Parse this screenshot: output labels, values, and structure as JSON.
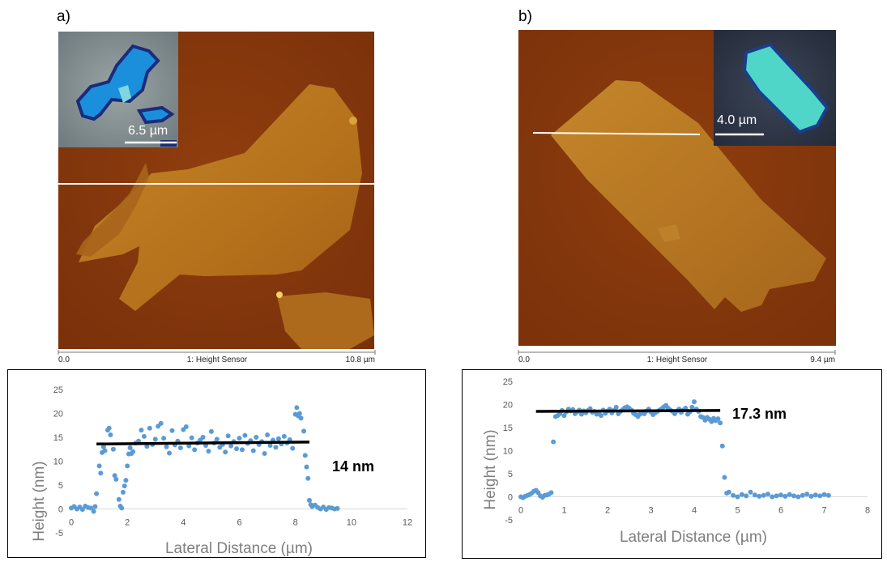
{
  "figure": {
    "panel_a": {
      "label": "a)",
      "inset_scale": "6.5 µm",
      "scan_axis": {
        "start": "0.0",
        "center": "1: Height Sensor",
        "end": "10.8 µm"
      },
      "annotation": "14 nm"
    },
    "panel_b": {
      "label": "b)",
      "inset_scale": "4.0 µm",
      "scan_axis": {
        "start": "0.0",
        "center": "1: Height Sensor",
        "end": "9.4 µm"
      },
      "annotation": "17.3 nm"
    }
  },
  "chart_data": [
    {
      "type": "scatter",
      "xlabel": "Lateral Distance (µm)",
      "ylabel": "Height  (nm)",
      "xlim": [
        0,
        12
      ],
      "ylim": [
        -5,
        25
      ],
      "xticks": [
        "0",
        "2",
        "4",
        "6",
        "8",
        "10",
        "12"
      ],
      "yticks": [
        "-5",
        "0",
        "5",
        "10",
        "15",
        "20",
        "25"
      ],
      "color": "#5b9bd5",
      "fit_line": {
        "x": [
          0.9,
          8.5
        ],
        "y": [
          13.6,
          14.0
        ]
      },
      "annotation": "14 nm",
      "x": [
        0.0,
        0.1,
        0.2,
        0.3,
        0.4,
        0.5,
        0.6,
        0.7,
        0.8,
        0.85,
        0.9,
        1.0,
        1.05,
        1.1,
        1.15,
        1.2,
        1.3,
        1.35,
        1.4,
        1.5,
        1.55,
        1.6,
        1.7,
        1.75,
        1.8,
        1.85,
        1.9,
        1.95,
        2.0,
        2.05,
        2.1,
        2.15,
        2.2,
        2.3,
        2.4,
        2.5,
        2.6,
        2.7,
        2.8,
        2.9,
        3.0,
        3.1,
        3.2,
        3.3,
        3.4,
        3.5,
        3.6,
        3.7,
        3.8,
        3.9,
        4.0,
        4.1,
        4.2,
        4.3,
        4.4,
        4.5,
        4.6,
        4.7,
        4.8,
        4.9,
        5.0,
        5.1,
        5.2,
        5.3,
        5.4,
        5.5,
        5.6,
        5.7,
        5.8,
        5.9,
        6.0,
        6.1,
        6.2,
        6.3,
        6.4,
        6.5,
        6.6,
        6.7,
        6.8,
        6.9,
        7.0,
        7.1,
        7.2,
        7.3,
        7.4,
        7.5,
        7.6,
        7.7,
        7.8,
        7.9,
        8.0,
        8.05,
        8.1,
        8.15,
        8.2,
        8.3,
        8.35,
        8.4,
        8.45,
        8.5,
        8.55,
        8.6,
        8.7,
        8.8,
        8.9,
        9.0,
        9.1,
        9.2,
        9.3,
        9.4,
        9.5
      ],
      "y": [
        0.2,
        0.5,
        0.0,
        0.4,
        -0.1,
        0.6,
        0.3,
        0.2,
        -0.5,
        0.5,
        3.2,
        9.0,
        7.5,
        11.8,
        13.0,
        12.2,
        16.5,
        16.9,
        15.5,
        12.5,
        7.0,
        6.2,
        2.0,
        0.6,
        0.2,
        3.5,
        4.8,
        6.0,
        9.0,
        11.5,
        12.8,
        11.6,
        12.0,
        13.8,
        14.2,
        16.5,
        15.2,
        13.1,
        16.9,
        13.5,
        14.6,
        17.3,
        17.9,
        14.8,
        13.0,
        11.7,
        16.4,
        13.4,
        14.2,
        12.8,
        16.6,
        17.2,
        13.2,
        14.9,
        12.4,
        13.8,
        14.4,
        15.0,
        13.3,
        12.1,
        16.2,
        13.8,
        14.6,
        12.9,
        13.5,
        11.9,
        15.3,
        13.2,
        14.1,
        12.6,
        14.8,
        12.4,
        15.4,
        13.7,
        14.3,
        12.2,
        15.0,
        13.5,
        14.1,
        11.6,
        15.5,
        13.3,
        14.4,
        12.9,
        14.7,
        13.6,
        15.2,
        13.8,
        14.5,
        12.7,
        19.8,
        21.2,
        19.5,
        20.0,
        19.0,
        16.3,
        11.2,
        8.8,
        6.4,
        1.8,
        0.9,
        0.5,
        0.8,
        0.3,
        0.0,
        0.4,
        -0.1,
        0.3,
        0.2,
        0.0,
        0.1
      ]
    },
    {
      "type": "scatter",
      "xlabel": "Lateral Distance (µm)",
      "ylabel": "Height  (nm)",
      "xlim": [
        0,
        8
      ],
      "ylim": [
        -5,
        25
      ],
      "xticks": [
        "0",
        "1",
        "2",
        "3",
        "4",
        "5",
        "6",
        "7",
        "8"
      ],
      "yticks": [
        "-5",
        "0",
        "5",
        "10",
        "15",
        "20",
        "25"
      ],
      "color": "#5b9bd5",
      "fit_line": {
        "x": [
          0.35,
          4.6
        ],
        "y": [
          18.5,
          18.7
        ]
      },
      "annotation": "17.3 nm",
      "x": [
        0.0,
        0.05,
        0.1,
        0.15,
        0.2,
        0.25,
        0.3,
        0.35,
        0.4,
        0.45,
        0.5,
        0.55,
        0.6,
        0.65,
        0.7,
        0.75,
        0.8,
        0.85,
        0.9,
        0.95,
        1.0,
        1.05,
        1.1,
        1.15,
        1.2,
        1.25,
        1.3,
        1.35,
        1.4,
        1.45,
        1.5,
        1.55,
        1.6,
        1.65,
        1.7,
        1.75,
        1.8,
        1.85,
        1.9,
        1.95,
        2.0,
        2.05,
        2.1,
        2.15,
        2.2,
        2.25,
        2.3,
        2.35,
        2.4,
        2.45,
        2.5,
        2.55,
        2.6,
        2.65,
        2.7,
        2.75,
        2.8,
        2.85,
        2.9,
        2.95,
        3.0,
        3.05,
        3.1,
        3.15,
        3.2,
        3.25,
        3.3,
        3.35,
        3.4,
        3.45,
        3.5,
        3.55,
        3.6,
        3.65,
        3.7,
        3.75,
        3.8,
        3.85,
        3.9,
        3.95,
        4.0,
        4.05,
        4.1,
        4.15,
        4.2,
        4.25,
        4.3,
        4.35,
        4.4,
        4.45,
        4.5,
        4.55,
        4.6,
        4.65,
        4.7,
        4.75,
        4.8,
        4.9,
        5.0,
        5.1,
        5.2,
        5.3,
        5.4,
        5.5,
        5.6,
        5.7,
        5.8,
        5.9,
        6.0,
        6.1,
        6.2,
        6.3,
        6.4,
        6.5,
        6.6,
        6.7,
        6.8,
        6.9,
        7.0,
        7.1
      ],
      "y": [
        0.0,
        -0.2,
        0.1,
        0.3,
        0.5,
        0.8,
        1.2,
        1.4,
        0.9,
        0.2,
        -0.1,
        0.3,
        0.4,
        0.6,
        0.9,
        11.9,
        17.4,
        17.6,
        18.0,
        18.7,
        17.6,
        18.4,
        19.0,
        18.6,
        18.9,
        18.0,
        18.4,
        18.8,
        17.9,
        18.6,
        18.2,
        18.7,
        19.1,
        18.3,
        18.5,
        17.9,
        18.4,
        17.6,
        18.8,
        18.1,
        18.6,
        19.0,
        18.2,
        18.7,
        19.4,
        18.0,
        18.5,
        18.9,
        19.3,
        19.5,
        19.2,
        18.8,
        18.1,
        17.8,
        17.4,
        17.9,
        18.3,
        18.0,
        18.6,
        19.0,
        18.4,
        17.8,
        18.2,
        18.5,
        18.8,
        19.1,
        19.5,
        19.8,
        19.2,
        18.8,
        18.5,
        18.0,
        18.6,
        19.0,
        18.3,
        18.8,
        19.2,
        17.9,
        18.4,
        19.4,
        20.6,
        19.0,
        18.5,
        17.4,
        17.2,
        16.6,
        17.2,
        16.8,
        16.3,
        17.0,
        16.5,
        16.9,
        16.0,
        11.0,
        4.2,
        0.8,
        1.0,
        0.3,
        0.0,
        0.5,
        0.2,
        1.0,
        0.4,
        0.1,
        0.3,
        0.6,
        0.0,
        0.2,
        0.4,
        0.1,
        0.5,
        0.2,
        0.0,
        0.3,
        0.6,
        0.1,
        0.4,
        0.2,
        0.5,
        0.3
      ]
    }
  ]
}
